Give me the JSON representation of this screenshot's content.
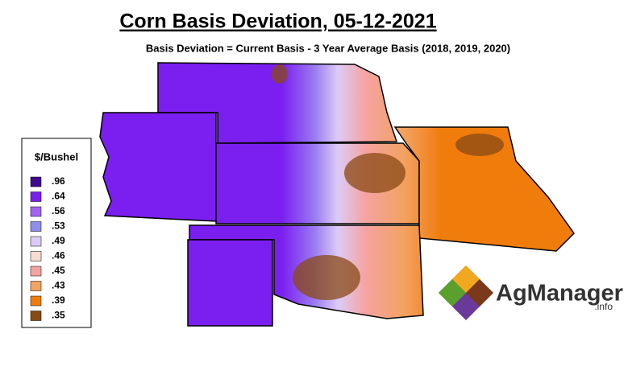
{
  "header": {
    "title": "Corn Basis Deviation, 05-12-2021",
    "subtitle": "Basis Deviation = Current Basis - 3 Year Average Basis (2018, 2019, 2020)"
  },
  "legend": {
    "title": "$/Bushel",
    "items": [
      {
        "label": ".96",
        "color": "#3f0a8f"
      },
      {
        "label": ".64",
        "color": "#7a1ff0"
      },
      {
        "label": ".56",
        "color": "#a066f2"
      },
      {
        "label": ".53",
        "color": "#8f8ff0"
      },
      {
        "label": ".49",
        "color": "#dccbf7"
      },
      {
        "label": ".46",
        "color": "#f7dccf"
      },
      {
        "label": ".45",
        "color": "#f5a3a0"
      },
      {
        "label": ".43",
        "color": "#f3a262"
      },
      {
        "label": ".39",
        "color": "#f07c0c"
      },
      {
        "label": ".35",
        "color": "#8a4a14"
      }
    ]
  },
  "logo": {
    "name": "AgManager",
    "suffix": ".info"
  }
}
